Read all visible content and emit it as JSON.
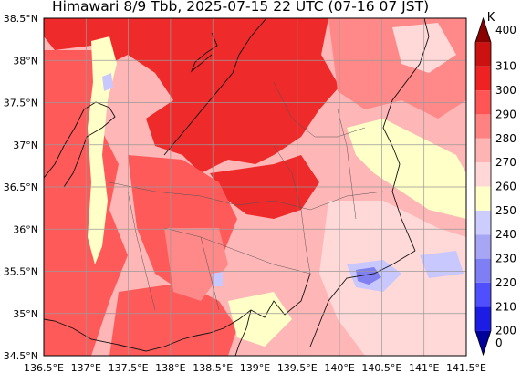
{
  "title": "Himawari 8/9 Tbb, 2025-07-15 22 UTC (07-16 07 JST)",
  "map": {
    "lat_labels": [
      "38.5°N",
      "38°N",
      "37.5°N",
      "37°N",
      "36.5°N",
      "36°N",
      "35.5°N",
      "35°N",
      "34.5°N"
    ],
    "lon_labels": [
      "136.5°E",
      "137°E",
      "137.5°E",
      "138°E",
      "138.5°E",
      "139°E",
      "139.5°E",
      "140°E",
      "140.5°E",
      "141°E",
      "141.5°E"
    ],
    "lat_range": [
      34.5,
      38.5
    ],
    "lon_range": [
      136.5,
      141.5
    ],
    "grid": true
  },
  "colorbar": {
    "unit_label": "K",
    "levels": [
      "0",
      "200",
      "210",
      "220",
      "230",
      "240",
      "250",
      "260",
      "270",
      "280",
      "290",
      "300",
      "310",
      "400"
    ],
    "colors": [
      "#00009c",
      "#1c1ce4",
      "#4f4fff",
      "#7e7ef5",
      "#a6a6f5",
      "#ccccff",
      "#ffffc8",
      "#ffd7d7",
      "#ffb4b4",
      "#ff8282",
      "#ff5555",
      "#ee2222",
      "#cc1111",
      "#880000"
    ]
  },
  "palette": {
    "hot": "#ee2a2a",
    "warm": "#ff5a5a",
    "mid": "#ff8888",
    "light": "#ffb6b6",
    "pale": "#ffd8d8",
    "cream": "#ffffc8",
    "cool": "#c8c8ff",
    "cold": "#8080f0"
  }
}
